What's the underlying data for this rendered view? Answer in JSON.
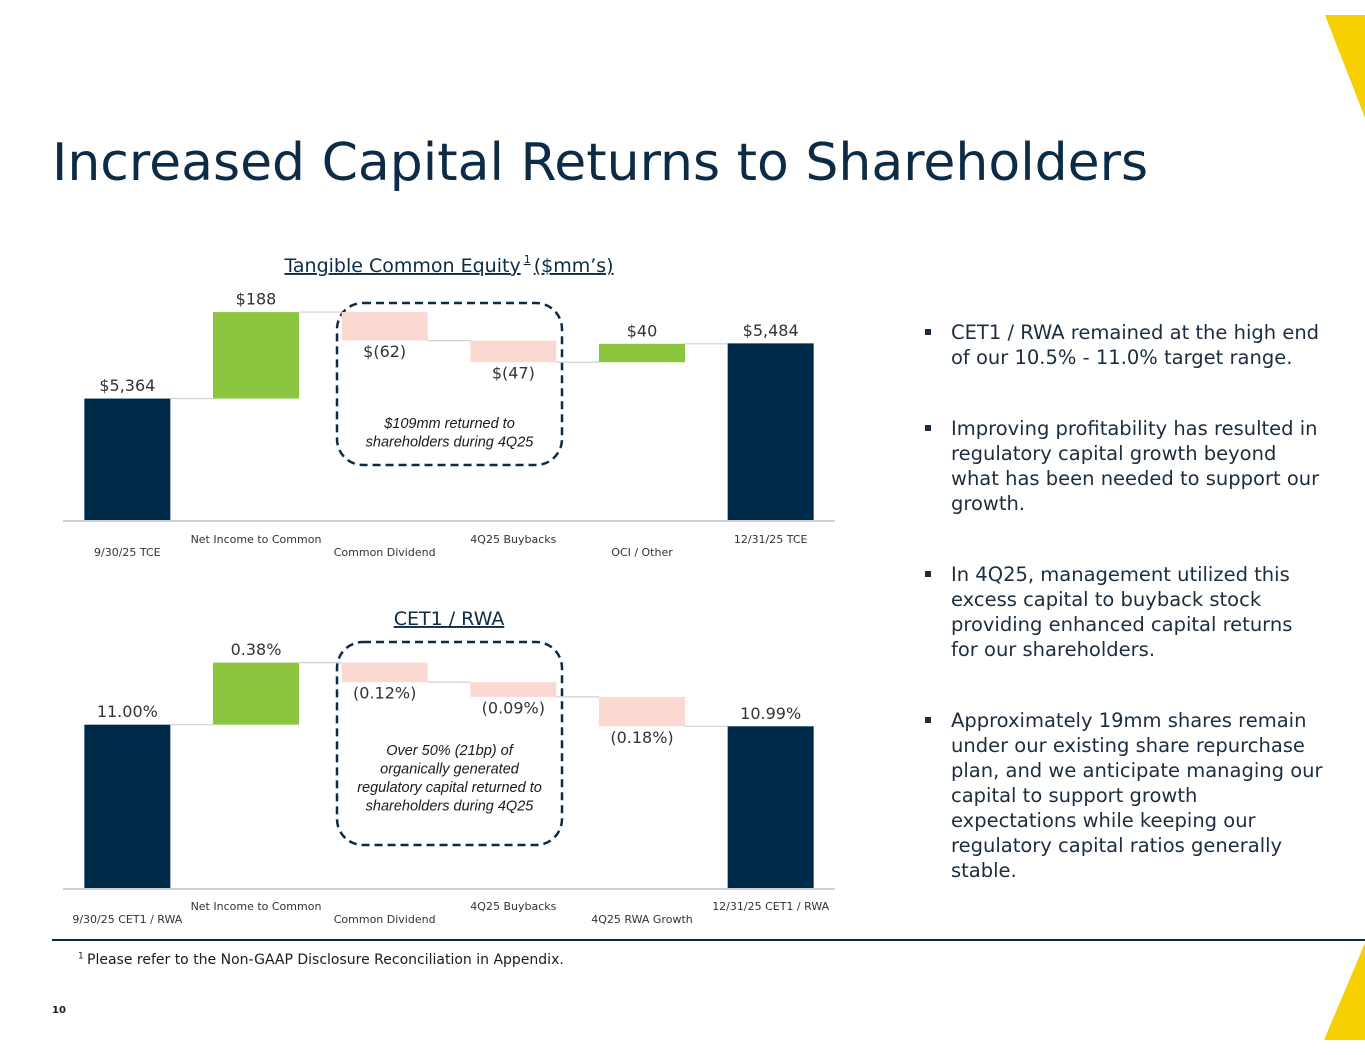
{
  "page": {
    "title": "Increased Capital Returns to Shareholders",
    "bullets": [
      "CET1 / RWA remained at the high end of our 10.5% - 11.0% target range.",
      "Improving profitability has resulted in regulatory capital growth beyond what has been needed to support our growth.",
      "In 4Q25, management utilized this excess capital to buyback stock providing enhanced capital returns for our shareholders.",
      "Approximately 19mm shares remain under our existing share repurchase plan, and we anticipate managing our capital to support growth expectations while keeping our regulatory capital ratios generally stable."
    ],
    "footnote_mark": "1",
    "footnote": "Please refer to the Non-GAAP Disclosure Reconciliation in Appendix.",
    "page_number": "10"
  },
  "chart_data": [
    {
      "type": "waterfall",
      "title": "Tangible Common Equity",
      "title_footnote_mark": "1",
      "title_suffix": "($mm’s)",
      "categories": [
        "9/30/25 TCE",
        "Net Income to Common",
        "Common Dividend",
        "4Q25 Buybacks",
        "OCI / Other",
        "12/31/25 TCE"
      ],
      "values": [
        5364,
        188,
        -62,
        -47,
        40,
        5484
      ],
      "value_labels": [
        "$5,364",
        "$188",
        "$(62)",
        "$(47)",
        "$40",
        "$5,484"
      ],
      "ylim": [
        5100,
        5600
      ],
      "color_total": "#002a4a",
      "color_increase": "#8cc63f",
      "color_decrease": "#fbd9d3",
      "annotation": [
        "$109mm returned to",
        "shareholders during 4Q25"
      ]
    },
    {
      "type": "waterfall",
      "title": "CET1 / RWA",
      "categories": [
        "9/30/25 CET1 / RWA",
        "Net Income to Common",
        "Common Dividend",
        "4Q25 Buybacks",
        "4Q25 RWA Growth",
        "12/31/25 CET1 / RWA"
      ],
      "values": [
        11,
        0.38,
        -0.12,
        -0.09,
        -0.18,
        10.99
      ],
      "value_labels": [
        "11.00%",
        "0.38%",
        "(0.12%)",
        "(0.09%)",
        "(0.18%)",
        "10.99%"
      ],
      "ylim": [
        10,
        11.5
      ],
      "color_total": "#002a4a",
      "color_increase": "#8cc63f",
      "color_decrease": "#fbd9d3",
      "annotation": [
        "Over 50% (21bp) of",
        "organically generated",
        "regulatory capital returned to",
        "shareholders during 4Q25"
      ]
    }
  ]
}
